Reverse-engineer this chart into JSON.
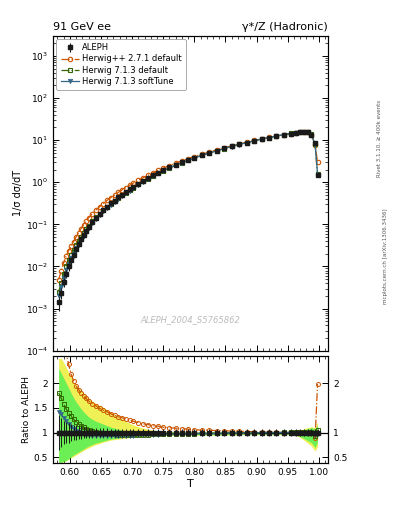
{
  "title_left": "91 GeV ee",
  "title_right": "γ*/Z (Hadronic)",
  "ylabel_main": "1/σ dσ/dT",
  "ylabel_ratio": "Ratio to ALEPH",
  "xlabel": "T",
  "watermark": "ALEPH_2004_S5765862",
  "right_label_top": "Rivet 3.1.10, ≥ 400k events",
  "right_label_bot": "mcplots.cern.ch [arXiv:1306.3436]",
  "ylim_main": [
    0.0001,
    3000.0
  ],
  "ylim_ratio": [
    0.38,
    2.55
  ],
  "xlim": [
    0.573,
    1.015
  ],
  "legend": [
    {
      "label": "ALEPH",
      "color": "#1a1a1a",
      "marker": "s",
      "filled": true
    },
    {
      "label": "Herwig++ 2.7.1 default",
      "color": "#cc5500",
      "marker": "o",
      "filled": false,
      "linestyle": "-."
    },
    {
      "label": "Herwig 7.1.3 default",
      "color": "#336600",
      "marker": "s",
      "filled": false,
      "linestyle": "-."
    },
    {
      "label": "Herwig 7.1.3 softTune",
      "color": "#336688",
      "marker": "v",
      "filled": true,
      "linestyle": "-"
    }
  ],
  "T_values": [
    0.582,
    0.586,
    0.59,
    0.594,
    0.598,
    0.602,
    0.606,
    0.61,
    0.614,
    0.618,
    0.622,
    0.626,
    0.63,
    0.636,
    0.642,
    0.648,
    0.654,
    0.66,
    0.666,
    0.672,
    0.678,
    0.684,
    0.69,
    0.696,
    0.702,
    0.71,
    0.718,
    0.726,
    0.734,
    0.742,
    0.75,
    0.76,
    0.77,
    0.78,
    0.79,
    0.8,
    0.812,
    0.824,
    0.836,
    0.848,
    0.86,
    0.872,
    0.884,
    0.896,
    0.908,
    0.92,
    0.932,
    0.944,
    0.956,
    0.964,
    0.97,
    0.976,
    0.982,
    0.988,
    0.994,
    0.998
  ],
  "aleph_y": [
    0.0014,
    0.0024,
    0.0042,
    0.0068,
    0.01,
    0.014,
    0.019,
    0.026,
    0.034,
    0.044,
    0.056,
    0.07,
    0.087,
    0.113,
    0.143,
    0.177,
    0.216,
    0.262,
    0.314,
    0.368,
    0.436,
    0.508,
    0.588,
    0.678,
    0.778,
    0.93,
    1.09,
    1.27,
    1.47,
    1.7,
    1.95,
    2.26,
    2.6,
    2.98,
    3.4,
    3.86,
    4.42,
    5.02,
    5.67,
    6.37,
    7.12,
    7.92,
    8.77,
    9.67,
    10.62,
    11.52,
    12.52,
    13.42,
    14.32,
    15.02,
    15.52,
    15.82,
    15.52,
    13.52,
    8.52,
    1.52
  ],
  "aleph_err": [
    0.0005,
    0.0007,
    0.001,
    0.0014,
    0.002,
    0.0025,
    0.003,
    0.0038,
    0.0046,
    0.0055,
    0.0065,
    0.0076,
    0.009,
    0.011,
    0.013,
    0.016,
    0.019,
    0.022,
    0.026,
    0.03,
    0.035,
    0.04,
    0.046,
    0.053,
    0.06,
    0.07,
    0.081,
    0.093,
    0.107,
    0.123,
    0.14,
    0.162,
    0.187,
    0.214,
    0.245,
    0.278,
    0.318,
    0.361,
    0.408,
    0.459,
    0.513,
    0.57,
    0.632,
    0.697,
    0.765,
    0.83,
    0.902,
    0.967,
    1.032,
    1.082,
    1.118,
    1.14,
    1.118,
    0.974,
    0.614,
    0.11
  ],
  "herwig271_ratio": [
    3.5,
    3.2,
    2.9,
    2.6,
    2.38,
    2.18,
    2.05,
    1.95,
    1.87,
    1.8,
    1.74,
    1.69,
    1.64,
    1.58,
    1.54,
    1.49,
    1.45,
    1.42,
    1.38,
    1.35,
    1.32,
    1.3,
    1.27,
    1.25,
    1.23,
    1.2,
    1.18,
    1.16,
    1.14,
    1.13,
    1.11,
    1.1,
    1.09,
    1.08,
    1.07,
    1.06,
    1.05,
    1.05,
    1.04,
    1.04,
    1.03,
    1.03,
    1.02,
    1.02,
    1.01,
    1.01,
    1.01,
    1.0,
    1.0,
    1.0,
    1.0,
    1.0,
    1.0,
    1.0,
    0.89,
    1.98
  ],
  "herwig713d_ratio": [
    1.8,
    1.7,
    1.58,
    1.48,
    1.4,
    1.33,
    1.27,
    1.22,
    1.18,
    1.14,
    1.11,
    1.08,
    1.06,
    1.04,
    1.02,
    1.0,
    0.99,
    0.98,
    0.97,
    0.97,
    0.96,
    0.96,
    0.96,
    0.96,
    0.96,
    0.96,
    0.96,
    0.96,
    0.97,
    0.97,
    0.97,
    0.97,
    0.98,
    0.98,
    0.98,
    0.98,
    0.99,
    0.99,
    0.99,
    0.99,
    1.0,
    1.0,
    1.0,
    1.0,
    1.0,
    1.0,
    1.0,
    1.01,
    1.01,
    1.01,
    1.01,
    1.01,
    1.01,
    1.01,
    0.93,
    1.05
  ],
  "herwig713s_ratio": [
    1.42,
    1.37,
    1.3,
    1.23,
    1.17,
    1.12,
    1.07,
    1.03,
    1.01,
    0.98,
    0.97,
    0.96,
    0.95,
    0.94,
    0.94,
    0.94,
    0.94,
    0.94,
    0.94,
    0.94,
    0.94,
    0.94,
    0.94,
    0.94,
    0.94,
    0.95,
    0.95,
    0.96,
    0.96,
    0.96,
    0.97,
    0.97,
    0.97,
    0.97,
    0.97,
    0.98,
    0.98,
    0.98,
    0.98,
    0.99,
    0.99,
    0.99,
    0.99,
    0.99,
    1.0,
    1.0,
    1.0,
    1.0,
    1.0,
    1.0,
    1.0,
    1.0,
    1.0,
    1.0,
    0.95,
    1.0
  ],
  "band_yellow_lo": [
    0.4,
    0.4,
    0.41,
    0.43,
    0.46,
    0.49,
    0.52,
    0.55,
    0.58,
    0.61,
    0.64,
    0.67,
    0.69,
    0.73,
    0.76,
    0.78,
    0.81,
    0.83,
    0.85,
    0.86,
    0.87,
    0.88,
    0.89,
    0.9,
    0.91,
    0.92,
    0.93,
    0.93,
    0.94,
    0.94,
    0.94,
    0.95,
    0.95,
    0.95,
    0.95,
    0.95,
    0.95,
    0.95,
    0.95,
    0.95,
    0.95,
    0.96,
    0.96,
    0.96,
    0.96,
    0.96,
    0.96,
    0.96,
    0.96,
    0.94,
    0.9,
    0.85,
    0.79,
    0.73,
    0.63,
    0.72
  ],
  "band_yellow_hi": [
    2.5,
    2.5,
    2.42,
    2.32,
    2.22,
    2.12,
    2.02,
    1.96,
    1.9,
    1.85,
    1.8,
    1.75,
    1.7,
    1.64,
    1.59,
    1.55,
    1.51,
    1.46,
    1.41,
    1.37,
    1.32,
    1.28,
    1.23,
    1.19,
    1.16,
    1.12,
    1.09,
    1.07,
    1.05,
    1.04,
    1.03,
    1.02,
    1.02,
    1.01,
    1.01,
    1.01,
    1.01,
    1.01,
    1.01,
    1.01,
    1.01,
    1.01,
    1.01,
    1.01,
    1.01,
    1.01,
    1.01,
    1.01,
    1.01,
    1.02,
    1.05,
    1.08,
    1.1,
    1.12,
    1.1,
    1.22
  ],
  "band_green_lo": [
    0.4,
    0.4,
    0.42,
    0.44,
    0.47,
    0.51,
    0.55,
    0.58,
    0.61,
    0.64,
    0.67,
    0.7,
    0.73,
    0.76,
    0.79,
    0.81,
    0.83,
    0.85,
    0.87,
    0.88,
    0.89,
    0.9,
    0.91,
    0.92,
    0.93,
    0.93,
    0.94,
    0.94,
    0.95,
    0.95,
    0.95,
    0.95,
    0.96,
    0.96,
    0.96,
    0.96,
    0.96,
    0.96,
    0.96,
    0.96,
    0.97,
    0.97,
    0.97,
    0.97,
    0.97,
    0.97,
    0.97,
    0.97,
    0.97,
    0.95,
    0.92,
    0.88,
    0.84,
    0.8,
    0.7,
    0.82
  ],
  "band_green_hi": [
    2.3,
    2.2,
    2.1,
    2.0,
    1.9,
    1.8,
    1.7,
    1.62,
    1.55,
    1.48,
    1.42,
    1.37,
    1.32,
    1.27,
    1.23,
    1.2,
    1.17,
    1.14,
    1.11,
    1.09,
    1.07,
    1.05,
    1.04,
    1.03,
    1.02,
    1.01,
    1.01,
    1.01,
    1.01,
    1.01,
    1.01,
    1.01,
    1.01,
    1.01,
    1.01,
    1.01,
    1.01,
    1.01,
    1.01,
    1.01,
    1.01,
    1.01,
    1.01,
    1.01,
    1.01,
    1.01,
    1.01,
    1.01,
    1.01,
    1.02,
    1.04,
    1.06,
    1.08,
    1.1,
    1.08,
    1.15
  ]
}
